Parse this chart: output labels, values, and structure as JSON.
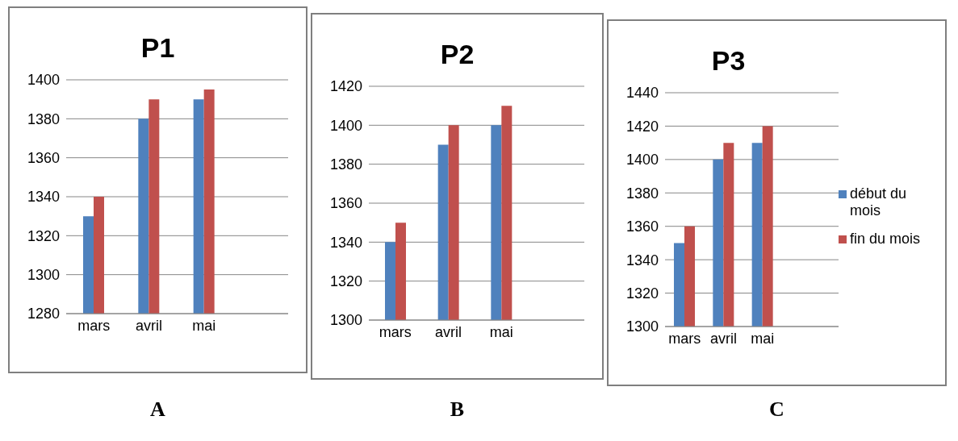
{
  "chart_data": [
    {
      "type": "bar",
      "title": "P1",
      "categories": [
        "mars",
        "avril",
        "mai"
      ],
      "series": [
        {
          "color": "#4f81bd",
          "values": [
            1330,
            1380,
            1390
          ]
        },
        {
          "color": "#c0504d",
          "values": [
            1340,
            1390,
            1395
          ]
        }
      ],
      "ylim": [
        1280,
        1400
      ],
      "yticks": [
        1280,
        1300,
        1320,
        1340,
        1360,
        1380,
        1400
      ],
      "grid": "y",
      "annotations": [
        "A"
      ]
    },
    {
      "type": "bar",
      "title": "P2",
      "categories": [
        "mars",
        "avril",
        "mai"
      ],
      "series": [
        {
          "color": "#4f81bd",
          "values": [
            1340,
            1390,
            1400
          ]
        },
        {
          "color": "#c0504d",
          "values": [
            1350,
            1400,
            1410
          ]
        }
      ],
      "ylim": [
        1300,
        1420
      ],
      "yticks": [
        1300,
        1320,
        1340,
        1360,
        1380,
        1400,
        1420
      ],
      "grid": "y",
      "annotations": [
        "B"
      ]
    },
    {
      "type": "bar",
      "title": "P3",
      "categories": [
        "mars",
        "avril",
        "mai"
      ],
      "series": [
        {
          "name": "début du mois",
          "color": "#4f81bd",
          "values": [
            1350,
            1400,
            1410
          ]
        },
        {
          "name": "fin du mois",
          "color": "#c0504d",
          "values": [
            1360,
            1410,
            1420
          ]
        }
      ],
      "ylim": [
        1300,
        1440
      ],
      "yticks": [
        1300,
        1320,
        1340,
        1360,
        1380,
        1400,
        1420,
        1440
      ],
      "grid": "y",
      "legend": "right",
      "annotations": [
        "C"
      ]
    }
  ]
}
